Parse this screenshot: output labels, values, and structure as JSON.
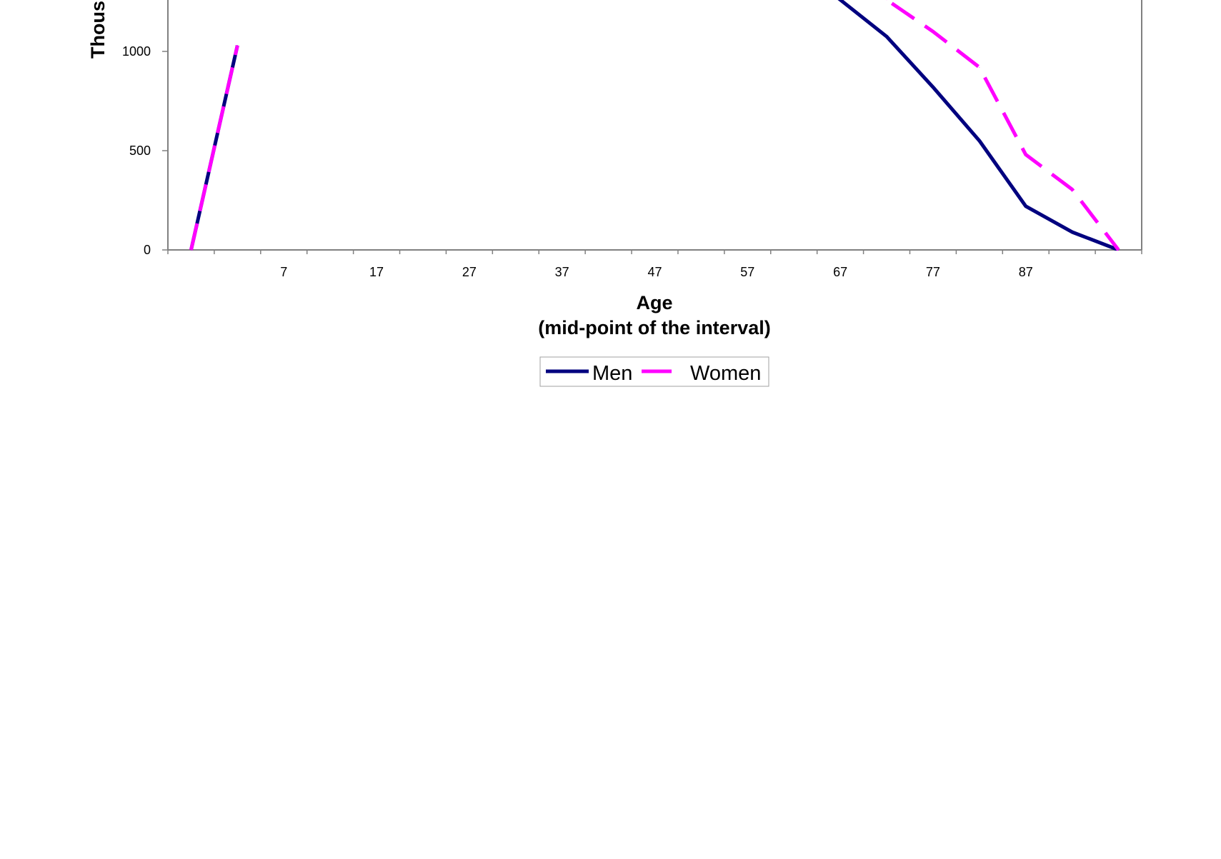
{
  "chart_data": {
    "type": "line",
    "xlabel_line1": "Age",
    "xlabel_line2": "(mid-point of the interval)",
    "ylabel": "Thous",
    "x_tick_labels": [
      "7",
      "17",
      "27",
      "37",
      "47",
      "57",
      "67",
      "77",
      "87"
    ],
    "y_tick_labels": [
      "0",
      "500",
      "1000"
    ],
    "ylim": [
      0,
      1260
    ],
    "grid": false,
    "legend_position": "bottom-center",
    "x_is_category": true,
    "categories": [
      "",
      "",
      "7",
      "",
      "17",
      "",
      "27",
      "",
      "37",
      "",
      "47",
      "",
      "57",
      "",
      "67",
      "",
      "77",
      "",
      "87",
      "",
      ""
    ],
    "series": [
      {
        "name": "Men",
        "color": "#00007f",
        "dash": "solid",
        "values": [
          0,
          1030,
          null,
          null,
          null,
          null,
          null,
          null,
          null,
          null,
          null,
          null,
          null,
          null,
          1260,
          1075,
          820,
          550,
          220,
          90,
          0
        ]
      },
      {
        "name": "Women",
        "color": "#ff00ff",
        "dash": "dashed",
        "values": [
          0,
          1030,
          null,
          null,
          null,
          null,
          null,
          null,
          null,
          null,
          null,
          null,
          null,
          null,
          null,
          1260,
          1100,
          920,
          480,
          305,
          0
        ]
      }
    ]
  }
}
